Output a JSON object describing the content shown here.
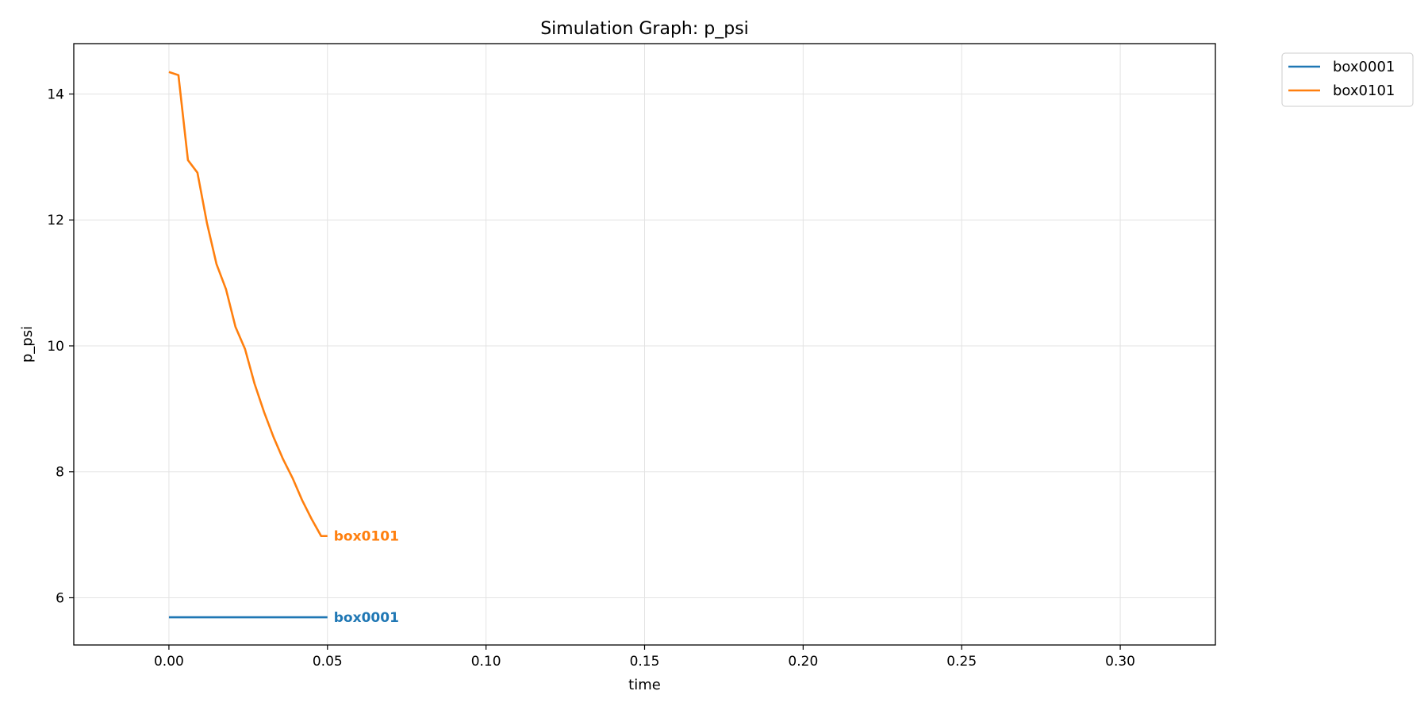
{
  "chart_data": {
    "type": "line",
    "title": "Simulation Graph: p_psi",
    "xlabel": "time",
    "ylabel": "p_psi",
    "xlim": [
      -0.03,
      0.33
    ],
    "ylim": [
      5.25,
      14.8
    ],
    "xticks": [
      0.0,
      0.05,
      0.1,
      0.15,
      0.2,
      0.25,
      0.3
    ],
    "xtick_labels": [
      "0.00",
      "0.05",
      "0.10",
      "0.15",
      "0.20",
      "0.25",
      "0.30"
    ],
    "yticks": [
      6,
      8,
      10,
      12,
      14
    ],
    "ytick_labels": [
      "6",
      "8",
      "10",
      "12",
      "14"
    ],
    "grid": true,
    "legend_position": "outside-top-right",
    "series": [
      {
        "name": "box0001",
        "color": "#1f77b4",
        "end_label": "box0001",
        "x": [
          0.0,
          0.05
        ],
        "y": [
          5.69,
          5.69
        ]
      },
      {
        "name": "box0101",
        "color": "#ff7f0e",
        "end_label": "box0101",
        "x": [
          0.0,
          0.003,
          0.006,
          0.009,
          0.012,
          0.015,
          0.018,
          0.021,
          0.024,
          0.027,
          0.03,
          0.033,
          0.036,
          0.039,
          0.042,
          0.045,
          0.048,
          0.05
        ],
        "y": [
          14.35,
          14.3,
          12.95,
          12.75,
          11.95,
          11.3,
          10.9,
          10.3,
          9.95,
          9.4,
          8.95,
          8.55,
          8.2,
          7.9,
          7.55,
          7.25,
          6.98,
          6.98
        ]
      }
    ]
  }
}
